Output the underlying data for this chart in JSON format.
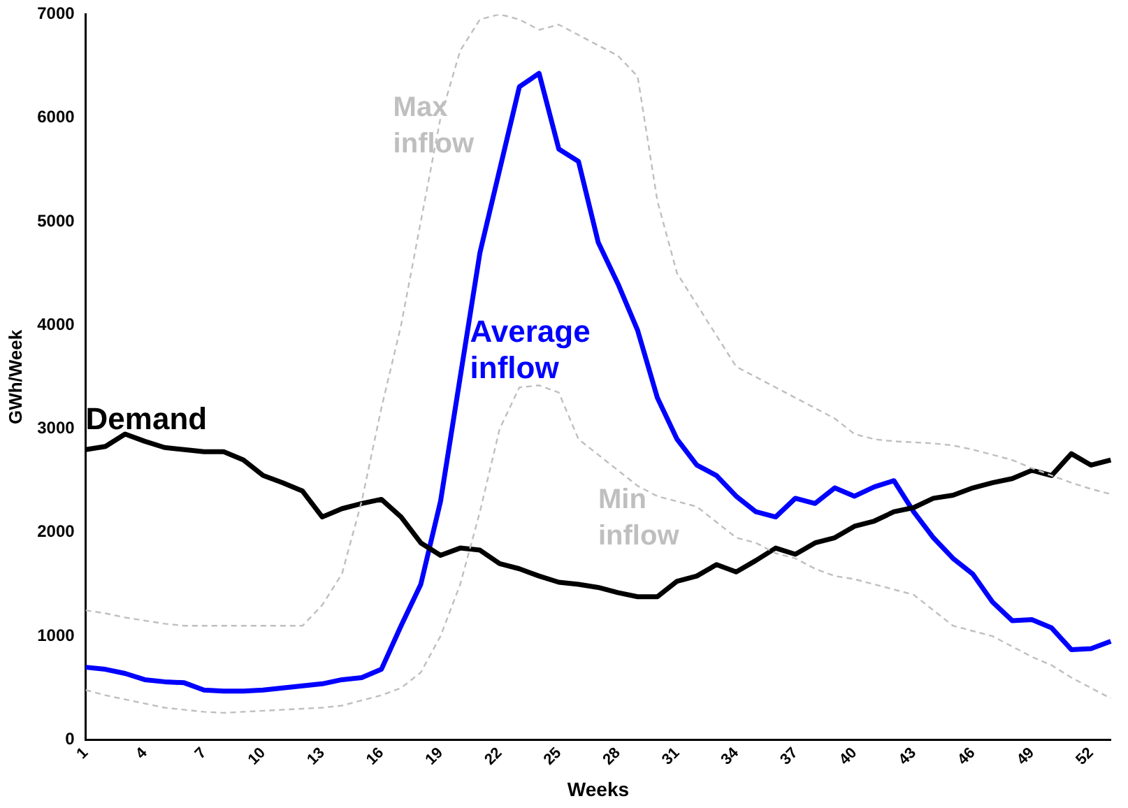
{
  "chart_data": {
    "type": "line",
    "xlabel": "Weeks",
    "ylabel": "GWh/Week",
    "categories": [
      "1",
      null,
      null,
      "4",
      null,
      null,
      "7",
      null,
      null,
      "10",
      null,
      null,
      "13",
      null,
      null,
      "16",
      null,
      null,
      "19",
      null,
      null,
      "22",
      null,
      null,
      "25",
      null,
      null,
      "28",
      null,
      null,
      "31",
      null,
      null,
      "34",
      null,
      null,
      "37",
      null,
      null,
      "40",
      null,
      null,
      "43",
      null,
      null,
      "46",
      null,
      null,
      "49",
      null,
      null,
      "52",
      null
    ],
    "series": [
      {
        "name": "Max inflow",
        "color": "#bfbfbf",
        "line_style": "dashed",
        "values": [
          1250,
          1220,
          1180,
          1150,
          1120,
          1100,
          1100,
          1100,
          1100,
          1100,
          1100,
          1100,
          1300,
          1600,
          2300,
          3200,
          4000,
          5000,
          6000,
          6650,
          6950,
          7000,
          6950,
          6850,
          6900,
          6800,
          6700,
          6600,
          6400,
          5200,
          4500,
          4200,
          3900,
          3600,
          3500,
          3400,
          3300,
          3200,
          3100,
          2950,
          2900,
          2880,
          2870,
          2860,
          2840,
          2800,
          2750,
          2700,
          2620,
          2550,
          2480,
          2420,
          2370
        ]
      },
      {
        "name": "Min inflow",
        "color": "#bfbfbf",
        "line_style": "dashed",
        "values": [
          480,
          430,
          390,
          350,
          310,
          290,
          270,
          260,
          270,
          280,
          290,
          300,
          310,
          330,
          380,
          430,
          500,
          650,
          1000,
          1500,
          2200,
          3000,
          3400,
          3420,
          3350,
          2900,
          2750,
          2600,
          2450,
          2350,
          2300,
          2250,
          2100,
          1950,
          1900,
          1800,
          1750,
          1650,
          1580,
          1550,
          1500,
          1450,
          1400,
          1250,
          1100,
          1050,
          1000,
          900,
          800,
          720,
          600,
          500,
          400
        ]
      },
      {
        "name": "Demand",
        "color": "#000000",
        "values": [
          2800,
          2830,
          2950,
          2880,
          2820,
          2800,
          2780,
          2780,
          2700,
          2550,
          2480,
          2400,
          2150,
          2230,
          2280,
          2320,
          2150,
          1900,
          1780,
          1850,
          1830,
          1700,
          1650,
          1580,
          1520,
          1500,
          1470,
          1420,
          1380,
          1380,
          1530,
          1580,
          1690,
          1620,
          1730,
          1850,
          1790,
          1900,
          1950,
          2060,
          2110,
          2200,
          2240,
          2330,
          2360,
          2430,
          2480,
          2520,
          2600,
          2550,
          2760,
          2650,
          2700
        ]
      },
      {
        "name": "Average inflow",
        "color": "#0000ff",
        "values": [
          700,
          680,
          640,
          580,
          560,
          550,
          480,
          470,
          470,
          480,
          500,
          520,
          540,
          580,
          600,
          680,
          1100,
          1500,
          2300,
          3500,
          4700,
          5500,
          6300,
          6430,
          5700,
          5580,
          4800,
          4400,
          3950,
          3300,
          2900,
          2650,
          2550,
          2350,
          2200,
          2150,
          2330,
          2280,
          2430,
          2350,
          2440,
          2500,
          2200,
          1950,
          1750,
          1600,
          1330,
          1150,
          1160,
          1080,
          870,
          880,
          950
        ]
      }
    ],
    "ylim": [
      0,
      7000
    ],
    "yticks": [
      0,
      1000,
      2000,
      3000,
      4000,
      5000,
      6000,
      7000
    ],
    "grid": false,
    "legend": false,
    "marker": "none"
  }
}
